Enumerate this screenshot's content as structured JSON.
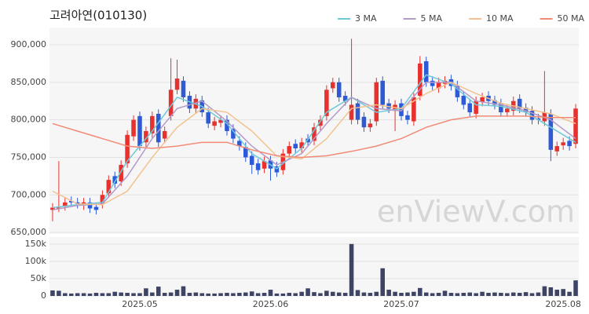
{
  "chart_data": [
    {
      "type": "candlestick",
      "title": "고려아연(010130)",
      "watermark": "enViewV.com",
      "up_color": "#e8312f",
      "down_color": "#2f5ad6",
      "open": [
        680000,
        683000,
        685000,
        692000,
        690000,
        686000,
        690000,
        684000,
        688000,
        702000,
        725000,
        718000,
        742000,
        778000,
        805000,
        770000,
        782000,
        808000,
        775000,
        805000,
        840000,
        852000,
        832000,
        815000,
        826000,
        810000,
        792000,
        796000,
        800000,
        788000,
        772000,
        764000,
        752000,
        742000,
        735000,
        746000,
        738000,
        733000,
        755000,
        768000,
        762000,
        775000,
        772000,
        792000,
        805000,
        842000,
        850000,
        832000,
        800000,
        822000,
        804000,
        790000,
        798000,
        852000,
        822000,
        812000,
        822000,
        806000,
        798000,
        832000,
        878000,
        852000,
        842000,
        848000,
        854000,
        846000,
        832000,
        822000,
        808000,
        824000,
        832000,
        826000,
        822000,
        810000,
        812000,
        828000,
        816000,
        812000,
        802000,
        798000,
        808000,
        758000,
        766000,
        772000,
        768000
      ],
      "high": [
        689000,
        745000,
        696000,
        698000,
        696000,
        696000,
        696000,
        690000,
        706000,
        726000,
        731000,
        746000,
        786000,
        806000,
        811000,
        791000,
        811000,
        814000,
        791000,
        882000,
        880000,
        858000,
        838000,
        834000,
        832000,
        816000,
        804000,
        806000,
        806000,
        794000,
        778000,
        770000,
        758000,
        748000,
        751000,
        752000,
        744000,
        761000,
        771000,
        774000,
        776000,
        781000,
        796000,
        806000,
        846000,
        856000,
        856000,
        838000,
        908000,
        828000,
        810000,
        801000,
        856000,
        858000,
        828000,
        826000,
        828000,
        812000,
        836000,
        885000,
        884000,
        858000,
        856000,
        858000,
        860000,
        852000,
        838000,
        828000,
        831000,
        836000,
        838000,
        832000,
        828000,
        821000,
        831000,
        834000,
        822000,
        818000,
        808000,
        865000,
        814000,
        771000,
        776000,
        778000,
        821000
      ],
      "low": [
        665000,
        677000,
        679000,
        684000,
        682000,
        680000,
        676000,
        674000,
        682000,
        696000,
        709000,
        712000,
        736000,
        772000,
        759000,
        764000,
        776000,
        764000,
        769000,
        799000,
        834000,
        824000,
        809000,
        809000,
        804000,
        789000,
        786000,
        790000,
        779000,
        769000,
        759000,
        744000,
        728000,
        727000,
        729000,
        719000,
        724000,
        727000,
        749000,
        756000,
        756000,
        764000,
        766000,
        786000,
        799000,
        836000,
        824000,
        819000,
        794000,
        794000,
        784000,
        784000,
        792000,
        814000,
        809000,
        785000,
        799000,
        794000,
        792000,
        826000,
        844000,
        839000,
        836000,
        842000,
        839000,
        824000,
        814000,
        804000,
        802000,
        818000,
        819000,
        814000,
        804000,
        804000,
        806000,
        809000,
        804000,
        794000,
        794000,
        792000,
        745000,
        752000,
        760000,
        759000,
        762000
      ],
      "close": [
        683000,
        683000,
        690000,
        690000,
        688000,
        690000,
        682000,
        680000,
        700000,
        720000,
        715000,
        740000,
        780000,
        800000,
        765000,
        785000,
        805000,
        770000,
        785000,
        840000,
        855000,
        830000,
        815000,
        828000,
        810000,
        795000,
        798000,
        800000,
        785000,
        775000,
        765000,
        750000,
        740000,
        733000,
        745000,
        735000,
        730000,
        755000,
        765000,
        762000,
        770000,
        770000,
        790000,
        800000,
        840000,
        850000,
        830000,
        825000,
        820000,
        800000,
        790000,
        795000,
        850000,
        820000,
        815000,
        820000,
        805000,
        800000,
        830000,
        875000,
        850000,
        845000,
        850000,
        852000,
        845000,
        830000,
        820000,
        810000,
        825000,
        830000,
        825000,
        820000,
        810000,
        815000,
        825000,
        815000,
        810000,
        800000,
        800000,
        810000,
        760000,
        765000,
        770000,
        765000,
        815000
      ],
      "series": [
        {
          "name": "3 MA",
          "color": "#6fc9d8",
          "x": [
            0,
            4,
            8,
            12,
            16,
            20,
            24,
            28,
            32,
            36,
            40,
            44,
            48,
            52,
            56,
            60,
            64,
            68,
            72,
            76,
            80,
            84
          ],
          "values": [
            683000,
            687000,
            690000,
            745000,
            785000,
            830000,
            818000,
            795000,
            755000,
            735000,
            762000,
            810000,
            830000,
            810000,
            815000,
            860000,
            848000,
            820000,
            818000,
            810000,
            790000,
            770000
          ]
        },
        {
          "name": "5 MA",
          "color": "#b39ac8",
          "x": [
            0,
            4,
            8,
            12,
            16,
            20,
            24,
            28,
            32,
            36,
            40,
            44,
            48,
            52,
            56,
            60,
            64,
            68,
            72,
            76,
            80,
            84
          ],
          "values": [
            680000,
            686000,
            688000,
            725000,
            775000,
            815000,
            825000,
            798000,
            765000,
            740000,
            755000,
            795000,
            830000,
            815000,
            812000,
            850000,
            850000,
            825000,
            820000,
            812000,
            800000,
            775000
          ]
        },
        {
          "name": "10 MA",
          "color": "#f3c28f",
          "x": [
            0,
            4,
            8,
            12,
            16,
            20,
            24,
            28,
            32,
            36,
            40,
            44,
            48,
            52,
            56,
            60,
            64,
            68,
            72,
            76,
            80,
            84
          ],
          "values": [
            705000,
            688000,
            687000,
            705000,
            750000,
            790000,
            815000,
            810000,
            785000,
            752000,
            748000,
            775000,
            815000,
            820000,
            815000,
            835000,
            850000,
            835000,
            822000,
            815000,
            808000,
            795000
          ]
        },
        {
          "name": "50 MA",
          "color": "#f28b76",
          "x": [
            0,
            4,
            8,
            12,
            16,
            20,
            24,
            28,
            32,
            36,
            40,
            44,
            48,
            52,
            56,
            60,
            64,
            68,
            72,
            76,
            80,
            84
          ],
          "values": [
            795000,
            785000,
            775000,
            765000,
            762000,
            765000,
            770000,
            770000,
            760000,
            752000,
            750000,
            752000,
            758000,
            765000,
            775000,
            790000,
            800000,
            805000,
            805000,
            805000,
            803000,
            803000
          ]
        }
      ],
      "ylim": [
        648000,
        923000
      ],
      "yticks": [
        {
          "value": 650000,
          "label": "650,000"
        },
        {
          "value": 700000,
          "label": "700,000"
        },
        {
          "value": 750000,
          "label": "750,000"
        },
        {
          "value": 800000,
          "label": "800,000"
        },
        {
          "value": 850000,
          "label": "850,000"
        },
        {
          "value": 900000,
          "label": "900,000"
        }
      ],
      "grid": true,
      "legend": "top-right"
    },
    {
      "type": "bar",
      "color": "#3d4466",
      "categories": [
        null,
        null,
        null,
        null,
        null,
        null,
        null,
        null,
        null,
        null,
        null,
        null,
        null,
        null,
        "2025.05",
        null,
        null,
        null,
        null,
        null,
        null,
        null,
        null,
        null,
        null,
        null,
        null,
        null,
        null,
        null,
        null,
        null,
        null,
        null,
        null,
        "2025.06",
        null,
        null,
        null,
        null,
        null,
        null,
        null,
        null,
        null,
        null,
        null,
        null,
        null,
        null,
        null,
        null,
        null,
        null,
        null,
        null,
        "2025.07",
        null,
        null,
        null,
        null,
        null,
        null,
        null,
        null,
        null,
        null,
        null,
        null,
        null,
        null,
        null,
        null,
        null,
        null,
        null,
        null,
        null,
        null,
        null,
        null,
        null,
        "2025.08",
        null,
        null
      ],
      "values": [
        16000,
        15000,
        8000,
        7000,
        8000,
        8000,
        7000,
        9000,
        8000,
        8000,
        12000,
        10000,
        9000,
        8000,
        8000,
        22000,
        10000,
        27000,
        9000,
        10000,
        18000,
        28000,
        9000,
        10000,
        8000,
        7000,
        7000,
        8000,
        9000,
        8000,
        9000,
        10000,
        13000,
        8000,
        9000,
        18000,
        7000,
        7000,
        9000,
        8000,
        12000,
        22000,
        11000,
        8000,
        15000,
        12000,
        10000,
        9000,
        150000,
        17000,
        10000,
        9000,
        12000,
        80000,
        18000,
        12000,
        9000,
        10000,
        12000,
        23000,
        10000,
        8000,
        9000,
        15000,
        9000,
        8000,
        9000,
        10000,
        8000,
        12000,
        9000,
        10000,
        9000,
        8000,
        10000,
        9000,
        11000,
        8000,
        10000,
        28000,
        25000,
        18000,
        20000,
        12000,
        45000
      ],
      "ylim": [
        0,
        170000
      ],
      "yticks": [
        0,
        {
          "value": 50000,
          "label": "50k"
        },
        {
          "value": 100000,
          "label": "100k"
        },
        {
          "value": 150000,
          "label": "150k"
        }
      ],
      "grid": true
    }
  ]
}
